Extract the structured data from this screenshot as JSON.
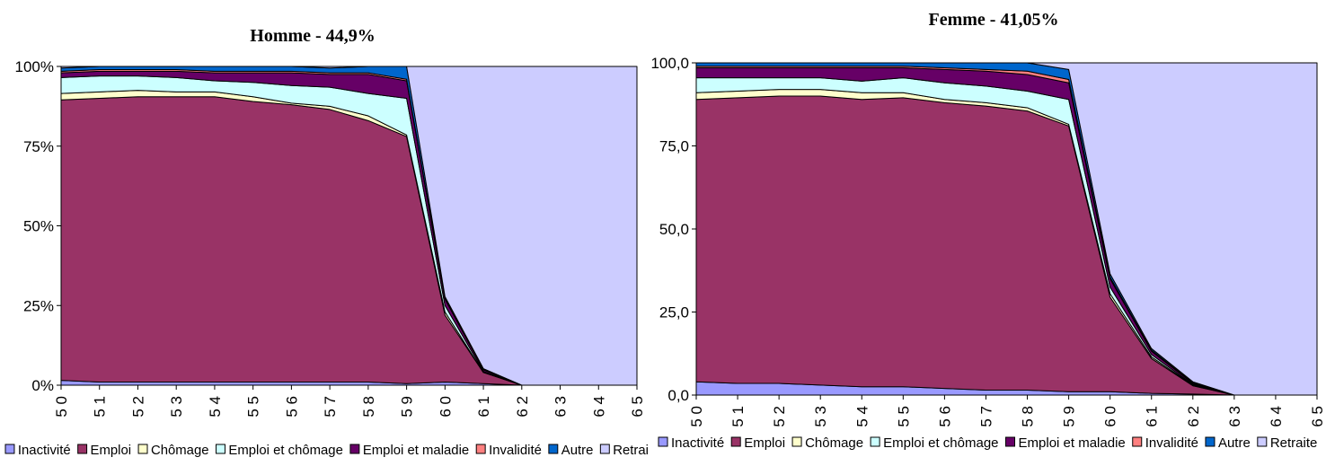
{
  "chart_data": [
    {
      "type": "area",
      "stacked": "percent",
      "title": "Homme - 44,9%",
      "xlabel": "",
      "ylabel": "",
      "x": [
        50,
        51,
        52,
        53,
        54,
        55,
        56,
        57,
        58,
        59,
        60,
        61,
        62,
        63,
        64,
        65
      ],
      "x_tick_labels": [
        "5 0",
        "5 1",
        "5 2",
        "5 3",
        "5 4",
        "5 5",
        "5 6",
        "5 7",
        "5 8",
        "5 9",
        "6 0",
        "6 1",
        "6 2",
        "6 3",
        "6 4",
        "6 5"
      ],
      "y_tick_labels": [
        "0%",
        "25%",
        "50%",
        "75%",
        "100%"
      ],
      "ylim": [
        0,
        100
      ],
      "series": [
        {
          "name": "Inactivité",
          "color": "#9999ff",
          "values": [
            1.5,
            1,
            1,
            1,
            1,
            1,
            1,
            1,
            1,
            0.5,
            1,
            0.5,
            0,
            0,
            0,
            0
          ]
        },
        {
          "name": "Emploi",
          "color": "#993366",
          "values": [
            88,
            89,
            89.5,
            89.5,
            89.5,
            88,
            87,
            85.5,
            82,
            77.5,
            21,
            3.5,
            0,
            0,
            0,
            0
          ]
        },
        {
          "name": "Chômage",
          "color": "#ffffcc",
          "values": [
            2,
            2,
            2,
            1.5,
            1.5,
            1.5,
            0.5,
            1,
            1.5,
            0.5,
            1,
            0,
            0,
            0,
            0,
            0
          ]
        },
        {
          "name": "Emploi et chômage",
          "color": "#ccffff",
          "values": [
            5,
            5,
            4.5,
            4.5,
            3.5,
            4.5,
            5.5,
            6,
            7,
            11.5,
            2,
            0.3,
            0,
            0,
            0,
            0
          ]
        },
        {
          "name": "Emploi et maladie",
          "color": "#660066",
          "values": [
            1.5,
            1.5,
            1.5,
            2,
            2.5,
            3,
            4,
            4,
            6,
            5.5,
            2,
            0.5,
            0,
            0,
            0,
            0
          ]
        },
        {
          "name": "Invalidité",
          "color": "#ff8080",
          "values": [
            0.5,
            0.5,
            0.5,
            0.5,
            0.5,
            0.5,
            0.5,
            0.5,
            0.5,
            0.5,
            0.3,
            0.2,
            0,
            0,
            0,
            0
          ]
        },
        {
          "name": "Autre",
          "color": "#0066cc",
          "values": [
            1,
            1,
            1,
            1,
            1.5,
            1.5,
            1.5,
            1.5,
            2,
            4,
            0.5,
            0.2,
            0,
            0,
            0,
            0
          ]
        },
        {
          "name": "Retraite",
          "color": "#ccccff",
          "values": [
            0.5,
            0,
            0,
            0,
            0,
            0,
            0,
            0.5,
            0,
            0,
            72.2,
            94.8,
            100,
            100,
            100,
            100
          ]
        }
      ],
      "legend": [
        "Inactivité",
        "Emploi",
        "Chômage",
        "Emploi et chômage",
        "Emploi et maladie",
        "Invalidité",
        "Autre",
        "Retrai"
      ],
      "legend_position": "bottom"
    },
    {
      "type": "area",
      "stacked": "percent",
      "title": "Femme - 41,05%",
      "xlabel": "",
      "ylabel": "",
      "x": [
        50,
        51,
        52,
        53,
        54,
        55,
        56,
        57,
        58,
        59,
        60,
        61,
        62,
        63,
        64,
        65
      ],
      "x_tick_labels": [
        "5 0",
        "5 1",
        "5 2",
        "5 3",
        "5 4",
        "5 5",
        "5 6",
        "5 7",
        "5 8",
        "5 9",
        "6 0",
        "6 1",
        "6 2",
        "6 3",
        "6 4",
        "6 5"
      ],
      "y_tick_labels": [
        "0,0",
        "25,0",
        "50,0",
        "75,0",
        "100,0"
      ],
      "ylim": [
        0,
        100
      ],
      "series": [
        {
          "name": "Inactivité",
          "color": "#9999ff",
          "values": [
            4,
            3.5,
            3.5,
            3,
            2.5,
            2.5,
            2,
            1.5,
            1.5,
            1,
            1,
            0.5,
            0.3,
            0,
            0,
            0
          ]
        },
        {
          "name": "Emploi",
          "color": "#993366",
          "values": [
            85,
            86,
            86.5,
            87,
            86.5,
            87,
            86,
            85.5,
            84,
            80,
            28.5,
            10.5,
            2.5,
            0,
            0,
            0
          ]
        },
        {
          "name": "Chômage",
          "color": "#ffffcc",
          "values": [
            2,
            2,
            2,
            2,
            2,
            1.5,
            1,
            1,
            1,
            0.5,
            1,
            0.5,
            0.2,
            0,
            0,
            0
          ]
        },
        {
          "name": "Emploi et chômage",
          "color": "#ccffff",
          "values": [
            4.5,
            4,
            3.5,
            3.5,
            3.5,
            4.5,
            5,
            5,
            5,
            7.5,
            2,
            0.7,
            0.2,
            0,
            0,
            0
          ]
        },
        {
          "name": "Emploi et maladie",
          "color": "#660066",
          "values": [
            3,
            3,
            3,
            3,
            4,
            3,
            4,
            4.5,
            5,
            5,
            2.5,
            1,
            0.3,
            0,
            0,
            0
          ]
        },
        {
          "name": "Invalidité",
          "color": "#ff8080",
          "values": [
            0.5,
            0.5,
            0.5,
            0.5,
            0.5,
            0.5,
            0.5,
            0.5,
            1,
            1,
            0.5,
            0.3,
            0.2,
            0,
            0,
            0
          ]
        },
        {
          "name": "Autre",
          "color": "#0066cc",
          "values": [
            1,
            1,
            1,
            1,
            1,
            1,
            1.5,
            2,
            2.5,
            3,
            1,
            0.5,
            0.3,
            0,
            0,
            0
          ]
        },
        {
          "name": "Retraite",
          "color": "#ccccff",
          "values": [
            0,
            0,
            0,
            0,
            0,
            0,
            0,
            0,
            0,
            2,
            63.5,
            86,
            96,
            100,
            100,
            100
          ]
        }
      ],
      "legend": [
        "Inactivité",
        "Emploi",
        "Chômage",
        "Emploi et chômage",
        "Emploi et maladie",
        "Invalidité",
        "Autre",
        "Retraite"
      ],
      "legend_position": "bottom"
    }
  ]
}
